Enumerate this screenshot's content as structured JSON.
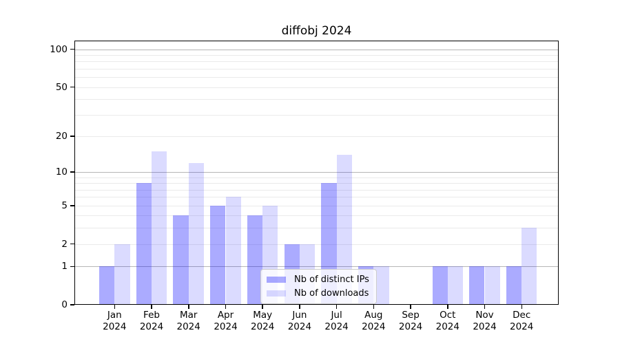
{
  "chart_data": {
    "type": "bar",
    "title": "diffobj 2024",
    "categories": [
      "Jan",
      "Feb",
      "Mar",
      "Apr",
      "May",
      "Jun",
      "Jul",
      "Aug",
      "Sep",
      "Oct",
      "Nov",
      "Dec"
    ],
    "year_label": "2024",
    "series": [
      {
        "name": "Nb of distinct IPs",
        "key": "distinct-ips",
        "color_hex": "#ababff",
        "fill": "rgba(0,0,255,0.33)",
        "values": [
          1,
          8,
          4,
          5,
          4,
          2,
          8,
          1,
          0,
          1,
          1,
          1
        ]
      },
      {
        "name": "Nb of downloads",
        "key": "downloads",
        "color_hex": "#dcdcff",
        "fill": "rgba(0,0,255,0.14)",
        "values": [
          2,
          15,
          12,
          6,
          5,
          2,
          14,
          1,
          0,
          1,
          1,
          3
        ]
      }
    ],
    "yscale": "log1p",
    "ylim": [
      0,
      115
    ],
    "yticks": [
      0,
      1,
      2,
      5,
      10,
      20,
      50,
      100
    ],
    "minor_gridlines": [
      2,
      3,
      4,
      5,
      6,
      7,
      8,
      9,
      20,
      30,
      40,
      50,
      60,
      70,
      80,
      90
    ],
    "major_gridlines": [
      1,
      10,
      100
    ],
    "grid": "on",
    "legend_position": "lower center",
    "colors": {
      "axis": "#000000",
      "major_grid": "#b5b5b5",
      "minor_grid": "#eaeaea",
      "background": "#ffffff"
    }
  }
}
